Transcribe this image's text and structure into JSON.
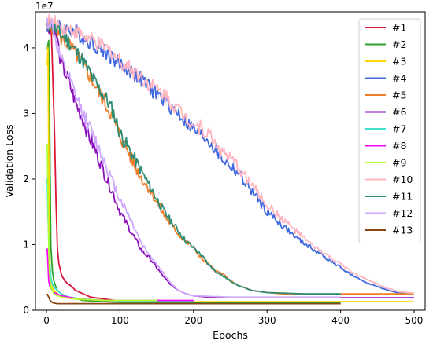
{
  "chart_data": {
    "type": "line",
    "xlabel": "Epochs",
    "ylabel": "Validation Loss",
    "y_offset_label": "1e7",
    "xlim": [
      -15,
      515
    ],
    "ylim": [
      0,
      4.55
    ],
    "y_scale_factor": 10000000,
    "xticks": [
      0,
      100,
      200,
      300,
      400,
      500
    ],
    "yticks": [
      0,
      1,
      2,
      3,
      4
    ],
    "legend_position": "top-right",
    "grid": false,
    "series": [
      {
        "name": "#1",
        "color": "#dc143c",
        "x": [
          1,
          3,
          5,
          7,
          9,
          11,
          13,
          15,
          17,
          20,
          25,
          30,
          40,
          60,
          80,
          100,
          150,
          200,
          300,
          400
        ],
        "y": [
          4.3,
          4.4,
          4.3,
          4.1,
          3.5,
          2.6,
          1.6,
          0.9,
          0.7,
          0.55,
          0.45,
          0.4,
          0.3,
          0.2,
          0.17,
          0.14,
          0.12,
          0.12,
          0.12,
          0.12
        ]
      },
      {
        "name": "#2",
        "color": "#2ca02c",
        "x": [
          1,
          3,
          4,
          5,
          6,
          8,
          10,
          12,
          15,
          20,
          30,
          50,
          80,
          100,
          150,
          200,
          300,
          400
        ],
        "y": [
          4.0,
          4.2,
          3.5,
          2.0,
          1.0,
          0.6,
          0.45,
          0.38,
          0.3,
          0.25,
          0.2,
          0.15,
          0.13,
          0.12,
          0.12,
          0.12,
          0.11,
          0.11
        ]
      },
      {
        "name": "#3",
        "color": "#ffd700",
        "x": [
          1,
          2,
          3,
          4,
          5,
          6,
          8,
          10,
          15,
          20,
          40,
          80,
          100,
          200,
          300,
          400,
          500
        ],
        "y": [
          3.8,
          3.9,
          2.5,
          1.0,
          0.6,
          0.45,
          0.35,
          0.3,
          0.25,
          0.2,
          0.17,
          0.15,
          0.14,
          0.13,
          0.13,
          0.13,
          0.13
        ]
      },
      {
        "name": "#4",
        "color": "#4169e1",
        "x": [
          1,
          5,
          10,
          20,
          30,
          40,
          50,
          60,
          70,
          80,
          90,
          100,
          120,
          140,
          160,
          180,
          200,
          220,
          240,
          260,
          280,
          300,
          320,
          340,
          360,
          380,
          400,
          420,
          440,
          460,
          480,
          500
        ],
        "y": [
          4.35,
          4.38,
          4.35,
          4.3,
          4.28,
          4.25,
          4.15,
          4.1,
          4.0,
          3.95,
          3.85,
          3.75,
          3.6,
          3.4,
          3.2,
          3.0,
          2.75,
          2.6,
          2.3,
          2.1,
          1.8,
          1.5,
          1.3,
          1.1,
          0.95,
          0.8,
          0.65,
          0.5,
          0.4,
          0.32,
          0.26,
          0.25
        ]
      },
      {
        "name": "#5",
        "color": "#f07f2b",
        "x": [
          1,
          5,
          10,
          20,
          30,
          40,
          50,
          60,
          70,
          80,
          90,
          100,
          110,
          120,
          130,
          140,
          150,
          160,
          170,
          180,
          190,
          200,
          210,
          220,
          230,
          240,
          250,
          260,
          280,
          300,
          320,
          350,
          400,
          450,
          500
        ],
        "y": [
          4.3,
          4.35,
          4.3,
          4.15,
          4.05,
          3.9,
          3.75,
          3.55,
          3.35,
          3.15,
          2.95,
          2.65,
          2.45,
          2.2,
          2.0,
          1.85,
          1.65,
          1.45,
          1.3,
          1.15,
          1.05,
          0.95,
          0.8,
          0.7,
          0.6,
          0.55,
          0.45,
          0.38,
          0.3,
          0.27,
          0.25,
          0.25,
          0.25,
          0.25,
          0.25
        ]
      },
      {
        "name": "#6",
        "color": "#8b0fba",
        "x": [
          1,
          5,
          10,
          15,
          20,
          30,
          40,
          50,
          60,
          70,
          80,
          90,
          100,
          110,
          120,
          130,
          140,
          150,
          160,
          170,
          180,
          190,
          200,
          220,
          250,
          300,
          400,
          500
        ],
        "y": [
          4.3,
          4.35,
          4.3,
          4.1,
          3.75,
          3.5,
          3.15,
          2.9,
          2.6,
          2.35,
          2.05,
          1.8,
          1.5,
          1.3,
          1.1,
          0.9,
          0.8,
          0.65,
          0.5,
          0.38,
          0.3,
          0.25,
          0.22,
          0.2,
          0.19,
          0.19,
          0.19,
          0.19
        ]
      },
      {
        "name": "#7",
        "color": "#40e0d0",
        "x": [
          1,
          2,
          4,
          6,
          8,
          10,
          15,
          20,
          30,
          50,
          80,
          100,
          150,
          200
        ],
        "y": [
          2.0,
          1.5,
          0.8,
          0.5,
          0.4,
          0.35,
          0.3,
          0.25,
          0.2,
          0.17,
          0.15,
          0.14,
          0.14,
          0.14
        ]
      },
      {
        "name": "#8",
        "color": "#ff00ff",
        "x": [
          1,
          2,
          3,
          5,
          8,
          10,
          20,
          40,
          60,
          80,
          100,
          150,
          200
        ],
        "y": [
          0.95,
          0.7,
          0.45,
          0.35,
          0.3,
          0.27,
          0.22,
          0.18,
          0.16,
          0.15,
          0.15,
          0.15,
          0.15
        ]
      },
      {
        "name": "#9",
        "color": "#adff2f",
        "x": [
          1,
          2,
          3,
          4,
          5,
          6,
          8,
          10,
          20,
          40,
          80,
          100,
          150
        ],
        "y": [
          2.6,
          1.8,
          1.0,
          0.6,
          0.45,
          0.35,
          0.3,
          0.25,
          0.2,
          0.17,
          0.15,
          0.15,
          0.15
        ]
      },
      {
        "name": "#10",
        "color": "#ffb6c1",
        "x": [
          1,
          5,
          10,
          20,
          30,
          40,
          50,
          60,
          70,
          80,
          90,
          100,
          120,
          140,
          160,
          180,
          200,
          220,
          240,
          260,
          280,
          300,
          320,
          340,
          360,
          380,
          400,
          420,
          440,
          460,
          480,
          500
        ],
        "y": [
          4.4,
          4.42,
          4.38,
          4.32,
          4.3,
          4.25,
          4.18,
          4.12,
          4.05,
          4.0,
          3.92,
          3.8,
          3.65,
          3.45,
          3.3,
          3.05,
          2.85,
          2.7,
          2.4,
          2.2,
          1.9,
          1.6,
          1.4,
          1.2,
          1.0,
          0.85,
          0.7,
          0.55,
          0.45,
          0.35,
          0.28,
          0.26
        ]
      },
      {
        "name": "#11",
        "color": "#2e8b74",
        "x": [
          1,
          5,
          10,
          20,
          30,
          40,
          50,
          60,
          70,
          80,
          90,
          100,
          110,
          120,
          130,
          140,
          150,
          160,
          170,
          180,
          190,
          200,
          210,
          220,
          230,
          240,
          250,
          260,
          280,
          300,
          350,
          400
        ],
        "y": [
          4.3,
          4.38,
          4.3,
          4.2,
          4.1,
          3.95,
          3.8,
          3.6,
          3.4,
          3.25,
          3.05,
          2.7,
          2.5,
          2.3,
          2.1,
          1.9,
          1.7,
          1.5,
          1.35,
          1.2,
          1.05,
          0.95,
          0.85,
          0.7,
          0.6,
          0.52,
          0.45,
          0.38,
          0.3,
          0.27,
          0.25,
          0.25
        ]
      },
      {
        "name": "#12",
        "color": "#cfa8ff",
        "x": [
          1,
          5,
          10,
          15,
          20,
          30,
          40,
          50,
          60,
          70,
          80,
          90,
          100,
          110,
          120,
          130,
          140,
          150,
          160,
          170,
          180,
          190,
          200,
          250,
          300,
          400
        ],
        "y": [
          4.4,
          4.38,
          4.25,
          4.0,
          3.8,
          3.55,
          3.25,
          3.0,
          2.75,
          2.5,
          2.25,
          1.95,
          1.7,
          1.5,
          1.25,
          1.0,
          0.85,
          0.7,
          0.55,
          0.4,
          0.3,
          0.25,
          0.22,
          0.2,
          0.2,
          0.2
        ]
      },
      {
        "name": "#13",
        "color": "#8b4513",
        "x": [
          1,
          3,
          5,
          8,
          10,
          15,
          20,
          30,
          50,
          80,
          100,
          150,
          200,
          300,
          400
        ],
        "y": [
          0.25,
          0.2,
          0.15,
          0.12,
          0.11,
          0.1,
          0.1,
          0.1,
          0.1,
          0.1,
          0.1,
          0.1,
          0.1,
          0.1,
          0.1
        ]
      }
    ]
  }
}
